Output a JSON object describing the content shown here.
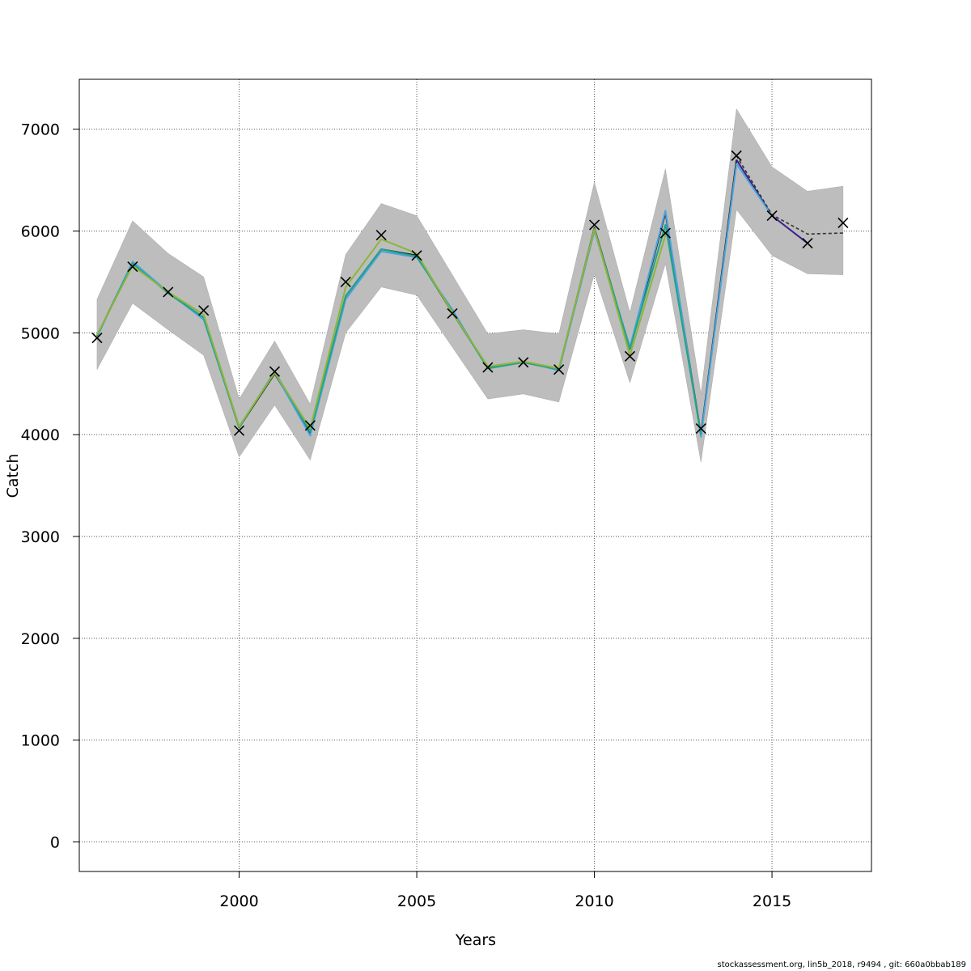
{
  "chart_data": {
    "type": "line",
    "title": "",
    "xlabel": "Years",
    "ylabel": "Catch",
    "xlim": [
      1995.5,
      2017.8
    ],
    "ylim": [
      -290,
      7490
    ],
    "x_ticks": [
      2000,
      2005,
      2010,
      2015
    ],
    "y_ticks": [
      0,
      1000,
      2000,
      3000,
      4000,
      5000,
      6000,
      7000
    ],
    "grid": true,
    "observed": {
      "x": [
        1996,
        1997,
        1998,
        1999,
        2000,
        2001,
        2002,
        2003,
        2004,
        2005,
        2006,
        2007,
        2008,
        2009,
        2010,
        2011,
        2012,
        2013,
        2014,
        2015,
        2016,
        2017
      ],
      "y": [
        4950,
        5650,
        5400,
        5220,
        4040,
        4620,
        4090,
        5500,
        5960,
        5760,
        5190,
        4660,
        4710,
        4640,
        6060,
        4770,
        5980,
        4060,
        6740,
        6150,
        5880,
        6080
      ]
    },
    "confidence_band": {
      "x": [
        1996,
        1997,
        1998,
        1999,
        2000,
        2001,
        2002,
        2003,
        2004,
        2005,
        2006,
        2007,
        2008,
        2009,
        2010,
        2011,
        2012,
        2013,
        2014,
        2015,
        2016,
        2017
      ],
      "lower": [
        4640,
        5290,
        5030,
        4780,
        3780,
        4290,
        3750,
        5000,
        5450,
        5370,
        4860,
        4350,
        4400,
        4320,
        5580,
        4510,
        5680,
        3730,
        6210,
        5760,
        5580,
        5570
      ],
      "upper": [
        5330,
        6100,
        5780,
        5550,
        4350,
        4920,
        4300,
        5770,
        6270,
        6150,
        5570,
        4990,
        5030,
        4990,
        6480,
        5200,
        6610,
        4400,
        7200,
        6630,
        6390,
        6440
      ]
    },
    "series": [
      {
        "color": "#1a1a1a",
        "dashed": false,
        "x": [
          1996,
          1997,
          1998,
          1999,
          2000,
          2001,
          2002,
          2003,
          2004,
          2005,
          2006,
          2007,
          2008,
          2009,
          2010,
          2011,
          2012,
          2013,
          2014
        ],
        "y": [
          4970,
          5690,
          5390,
          5150,
          4070,
          4600,
          4020,
          5360,
          5820,
          5760,
          5200,
          4660,
          4710,
          4640,
          6030,
          4840,
          6180,
          4000,
          6700
        ]
      },
      {
        "color": "#3b1f8a",
        "dashed": false,
        "x": [
          2014,
          2015,
          2016
        ],
        "y": [
          6700,
          6150,
          5880
        ]
      },
      {
        "color": "#4aa3df",
        "dashed": false,
        "x": [
          1996,
          1997,
          1998,
          1999,
          2000,
          2001,
          2002,
          2003,
          2004,
          2005,
          2006,
          2007,
          2008,
          2009,
          2010,
          2011,
          2012,
          2013,
          2014,
          2015
        ],
        "y": [
          4960,
          5700,
          5400,
          5130,
          4080,
          4610,
          3990,
          5330,
          5800,
          5740,
          5230,
          4650,
          4720,
          4630,
          6000,
          4860,
          6200,
          3980,
          6660,
          6150
        ]
      },
      {
        "color": "#1fa58a",
        "dashed": false,
        "x": [
          1996,
          1997,
          1998,
          1999,
          2000,
          2001,
          2002,
          2003,
          2004,
          2005,
          2006,
          2007,
          2008,
          2009,
          2010,
          2011,
          2012,
          2013
        ],
        "y": [
          4970,
          5680,
          5390,
          5150,
          4070,
          4620,
          4030,
          5360,
          5820,
          5750,
          5210,
          4650,
          4710,
          4640,
          6020,
          4840,
          6060,
          4000
        ]
      },
      {
        "color": "#8db53a",
        "dashed": false,
        "x": [
          1996,
          1997,
          1998,
          1999,
          2000,
          2001,
          2002,
          2003,
          2004,
          2005,
          2006,
          2007,
          2008,
          2009,
          2010,
          2011,
          2012
        ],
        "y": [
          4980,
          5660,
          5400,
          5180,
          4080,
          4610,
          4060,
          5450,
          5920,
          5780,
          5200,
          4670,
          4720,
          4650,
          6020,
          4780,
          5960
        ]
      },
      {
        "color": "#333333",
        "dashed": true,
        "x": [
          2014,
          2015,
          2016,
          2017
        ],
        "y": [
          6740,
          6160,
          5970,
          5980
        ]
      }
    ]
  },
  "footer_text": "stockassessment.org, lin5b_2018, r9494 , git: 660a0bbab189"
}
